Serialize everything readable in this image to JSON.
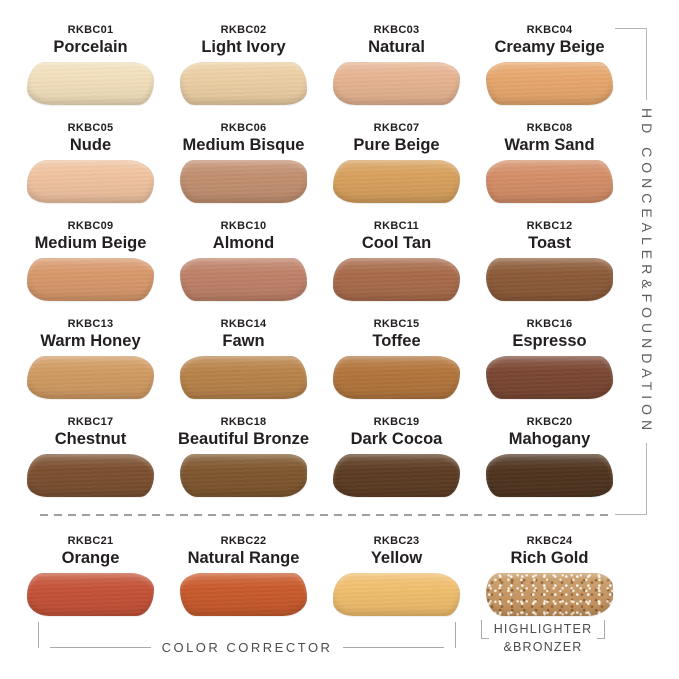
{
  "labels": {
    "right_bracket": "HD CONCEALER&FOUNDATION",
    "bottom_left_bracket": "COLOR CORRECTOR",
    "bottom_right_line1": "HIGHLIGHTER",
    "bottom_right_line2": "&BRONZER"
  },
  "colors": {
    "background": "#ffffff",
    "label_text": "#231f20",
    "annotation_text": "#4c4c4c",
    "bracket_line": "#b0b0b0",
    "dashed_line": "#9f9f9f"
  },
  "shades": [
    {
      "code": "RKBC01",
      "name": "Porcelain",
      "color": "#f3e0bc",
      "group": "hd-concealer-foundation"
    },
    {
      "code": "RKBC02",
      "name": "Light Ivory",
      "color": "#eccfa4",
      "group": "hd-concealer-foundation"
    },
    {
      "code": "RKBC03",
      "name": "Natural",
      "color": "#e6b491",
      "group": "hd-concealer-foundation"
    },
    {
      "code": "RKBC04",
      "name": "Creamy Beige",
      "color": "#e7a76c",
      "group": "hd-concealer-foundation"
    },
    {
      "code": "RKBC05",
      "name": "Nude",
      "color": "#f0c3a0",
      "group": "hd-concealer-foundation"
    },
    {
      "code": "RKBC06",
      "name": "Medium Bisque",
      "color": "#c28f70",
      "group": "hd-concealer-foundation"
    },
    {
      "code": "RKBC07",
      "name": "Pure Beige",
      "color": "#d8a15d",
      "group": "hd-concealer-foundation"
    },
    {
      "code": "RKBC08",
      "name": "Warm Sand",
      "color": "#d58e67",
      "group": "hd-concealer-foundation"
    },
    {
      "code": "RKBC09",
      "name": "Medium Beige",
      "color": "#d8996b",
      "group": "hd-concealer-foundation"
    },
    {
      "code": "RKBC10",
      "name": "Almond",
      "color": "#bf8168",
      "group": "hd-concealer-foundation"
    },
    {
      "code": "RKBC11",
      "name": "Cool Tan",
      "color": "#a96b4b",
      "group": "hd-concealer-foundation"
    },
    {
      "code": "RKBC12",
      "name": "Toast",
      "color": "#8c5b39",
      "group": "hd-concealer-foundation"
    },
    {
      "code": "RKBC13",
      "name": "Warm Honey",
      "color": "#d29b62",
      "group": "hd-concealer-foundation"
    },
    {
      "code": "RKBC14",
      "name": "Fawn",
      "color": "#b9834a",
      "group": "hd-concealer-foundation"
    },
    {
      "code": "RKBC15",
      "name": "Toffee",
      "color": "#b3763c",
      "group": "hd-concealer-foundation"
    },
    {
      "code": "RKBC16",
      "name": "Espresso",
      "color": "#7b4733",
      "group": "hd-concealer-foundation"
    },
    {
      "code": "RKBC17",
      "name": "Chestnut",
      "color": "#7c5030",
      "group": "hd-concealer-foundation"
    },
    {
      "code": "RKBC18",
      "name": "Beautiful Bronze",
      "color": "#7f572f",
      "group": "hd-concealer-foundation"
    },
    {
      "code": "RKBC19",
      "name": "Dark Cocoa",
      "color": "#5d3c23",
      "group": "hd-concealer-foundation"
    },
    {
      "code": "RKBC20",
      "name": "Mahogany",
      "color": "#4f3520",
      "group": "hd-concealer-foundation"
    },
    {
      "code": "RKBC21",
      "name": "Orange",
      "color": "#c55237",
      "group": "color-corrector"
    },
    {
      "code": "RKBC22",
      "name": "Natural Range",
      "color": "#c95a2b",
      "group": "color-corrector"
    },
    {
      "code": "RKBC23",
      "name": "Yellow",
      "color": "#f1be6d",
      "group": "color-corrector"
    },
    {
      "code": "RKBC24",
      "name": "Rich Gold",
      "color": "#c6935c",
      "group": "highlighter-bronzer",
      "sparkle": true
    }
  ]
}
